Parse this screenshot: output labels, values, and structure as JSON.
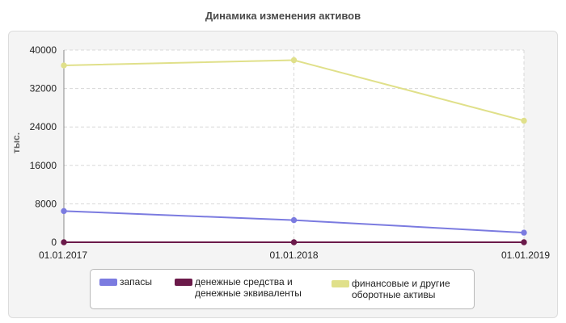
{
  "chart_data": {
    "type": "line",
    "title": "Динамика изменения активов",
    "ylabel": "тыс.",
    "xlabel": "",
    "categories": [
      "01.01.2017",
      "01.01.2018",
      "01.01.2019"
    ],
    "ylim": [
      0,
      40000
    ],
    "yticks": [
      0,
      8000,
      16000,
      24000,
      32000,
      40000
    ],
    "grid": true,
    "legend_position": "bottom",
    "series": [
      {
        "name": "запасы",
        "color": "#7b7be0",
        "values": [
          6500,
          4600,
          2000
        ]
      },
      {
        "name": "денежные средства и денежные эквиваленты",
        "color": "#6b1a4a",
        "values": [
          0,
          0,
          0
        ]
      },
      {
        "name": "финансовые и другие оборотные активы",
        "color": "#e0e08a",
        "values": [
          36800,
          37900,
          25300
        ]
      }
    ]
  },
  "legend": {
    "item1": "запасы",
    "item2": "денежные средства и\nденежные эквиваленты",
    "item3": "финансовые и другие\nоборотные активы"
  }
}
